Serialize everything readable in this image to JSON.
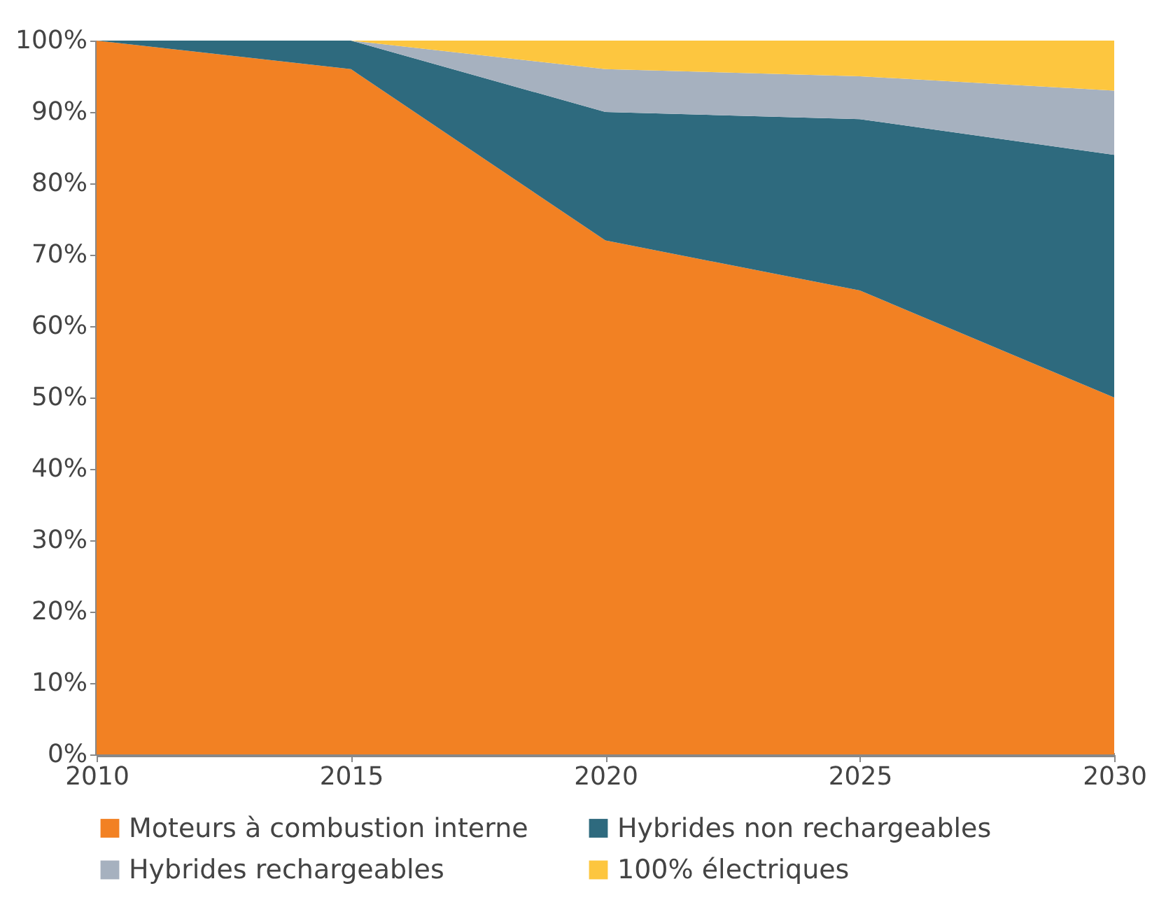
{
  "chart_data": {
    "type": "area",
    "stacked": true,
    "x": [
      2010,
      2015,
      2020,
      2025,
      2030
    ],
    "series": [
      {
        "name": "Moteurs à combustion interne",
        "color": "#f28123",
        "values": [
          100,
          96,
          72,
          65,
          50
        ]
      },
      {
        "name": "Hybrides non rechargeables",
        "color": "#2e6a7e",
        "values": [
          0,
          4,
          18,
          24,
          34
        ]
      },
      {
        "name": "Hybrides rechargeables",
        "color": "#a6b1bf",
        "values": [
          0,
          0,
          6,
          6,
          9
        ]
      },
      {
        "name": "100% électriques",
        "color": "#fdc63f",
        "values": [
          0,
          0,
          4,
          5,
          7
        ]
      }
    ],
    "xlim": [
      2010,
      2030
    ],
    "xticks": [
      2010,
      2015,
      2020,
      2025,
      2030
    ],
    "ylim": [
      0,
      100
    ],
    "yticks": [
      {
        "value": 0,
        "label": "0%"
      },
      {
        "value": 10,
        "label": "10%"
      },
      {
        "value": 20,
        "label": "20%"
      },
      {
        "value": 30,
        "label": "30%"
      },
      {
        "value": 40,
        "label": "40%"
      },
      {
        "value": 50,
        "label": "50%"
      },
      {
        "value": 60,
        "label": "60%"
      },
      {
        "value": 70,
        "label": "70%"
      },
      {
        "value": 80,
        "label": "80%"
      },
      {
        "value": 90,
        "label": "90%"
      },
      {
        "value": 100,
        "label": "100%"
      }
    ],
    "grid": false,
    "legend": "bottom"
  }
}
